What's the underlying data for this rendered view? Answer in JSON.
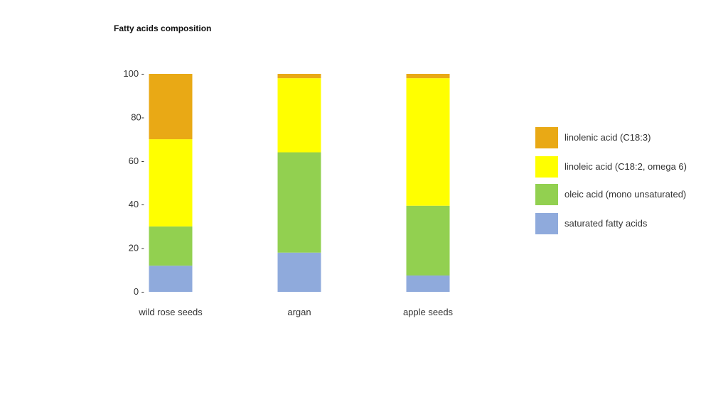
{
  "chart_data": {
    "type": "bar",
    "stacked": true,
    "title": "Fatty acids composition",
    "categories": [
      "wild rose seeds",
      "argan",
      "apple seeds"
    ],
    "ylim": [
      0,
      100
    ],
    "yticks": [
      0,
      20,
      40,
      60,
      80,
      100
    ],
    "ytick_labels": [
      "0 -",
      "20 -",
      "40 -",
      "60 -",
      "80-",
      "100 -"
    ],
    "grid": false,
    "legend_position": "right",
    "series": [
      {
        "name": "saturated fatty acids",
        "color": "#8faadc",
        "values": [
          12,
          18,
          7.5
        ]
      },
      {
        "name": "oleic acid (mono unsaturated)",
        "color": "#92d050",
        "values": [
          18,
          46,
          32
        ]
      },
      {
        "name": "linoleic acid (C18:2, omega 6)",
        "color": "#ffff00",
        "values": [
          40,
          34,
          58.5
        ]
      },
      {
        "name": "linolenic acid (C18:3)",
        "color": "#e9a915",
        "values": [
          30,
          2,
          2
        ]
      }
    ],
    "legend_order": [
      3,
      2,
      1,
      0
    ]
  }
}
